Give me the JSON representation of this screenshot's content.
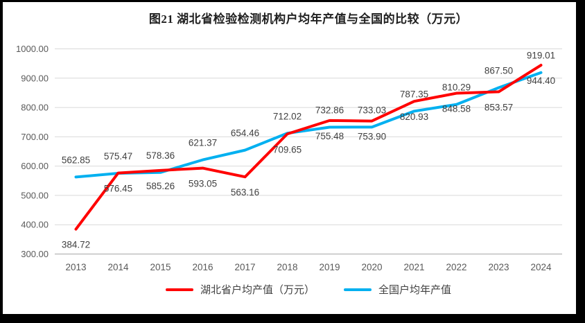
{
  "title": "图21 湖北省检验检测机构户均年产值与全国的比较（万元）",
  "chart_data": {
    "type": "line",
    "categories": [
      "2013",
      "2014",
      "2015",
      "2016",
      "2017",
      "2018",
      "2019",
      "2020",
      "2021",
      "2022",
      "2023",
      "2024"
    ],
    "series": [
      {
        "id": "hubei",
        "name": "湖北省户均产值（万元）",
        "color": "#FF0000",
        "label_position": "below",
        "values": [
          384.72,
          576.45,
          585.26,
          593.05,
          563.16,
          709.65,
          755.48,
          753.9,
          820.93,
          848.58,
          853.57,
          944.4
        ]
      },
      {
        "id": "national",
        "name": "全国户均年产值",
        "color": "#00B0F0",
        "label_position": "above",
        "values": [
          562.85,
          575.47,
          578.36,
          621.37,
          654.46,
          712.02,
          732.86,
          733.03,
          787.35,
          810.29,
          867.5,
          919.01
        ]
      }
    ],
    "ylim": [
      300,
      1000
    ],
    "ytick_step": 100,
    "ytick_labels": [
      "300.00",
      "400.00",
      "500.00",
      "600.00",
      "700.00",
      "800.00",
      "900.00",
      "1000.00"
    ],
    "xlabel": "",
    "ylabel": "",
    "grid": true,
    "data_labels_decimals": 2,
    "legend_position": "bottom"
  },
  "styles": {
    "grid_color": "#D9D9D9",
    "axis_line_color": "#BFBFBF",
    "tick_label_color": "#595959",
    "data_label_color": "#404040",
    "frame_color": "#000000",
    "background_color": "#FFFFFF"
  }
}
